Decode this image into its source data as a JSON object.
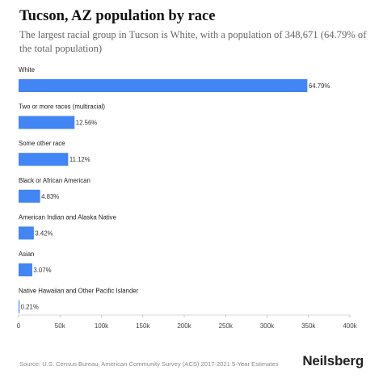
{
  "header": {
    "title": "Tucson, AZ population by race",
    "subtitle": "The largest racial group in Tucson is White, with a population of 348,671 (64.79% of the total population)"
  },
  "chart_data": {
    "type": "bar",
    "orientation": "horizontal",
    "categories": [
      "White",
      "Two or more races (multiracial)",
      "Some other race",
      "Black or African American",
      "American Indian and Alaska Native",
      "Asian",
      "Native Hawaiian and Other Pacific Islander"
    ],
    "values": [
      348671,
      67590,
      59840,
      25990,
      18400,
      16520,
      1130
    ],
    "data_labels": [
      "64.79%",
      "12.56%",
      "11.12%",
      "4.83%",
      "3.42%",
      "3.07%",
      "0.21%"
    ],
    "xlim": [
      0,
      400000
    ],
    "ticks": [
      0,
      50000,
      100000,
      150000,
      200000,
      250000,
      300000,
      350000,
      400000
    ],
    "tick_labels": [
      "0",
      "50k",
      "100k",
      "150k",
      "200k",
      "250k",
      "300k",
      "350k",
      "400k"
    ],
    "bar_color": "#4285f4",
    "grid": false
  },
  "footer": {
    "source": "Source: U.S. Census Bureau, American Community Survey (ACS) 2017-2021 5-Year Estimates",
    "brand": "Neilsberg"
  }
}
